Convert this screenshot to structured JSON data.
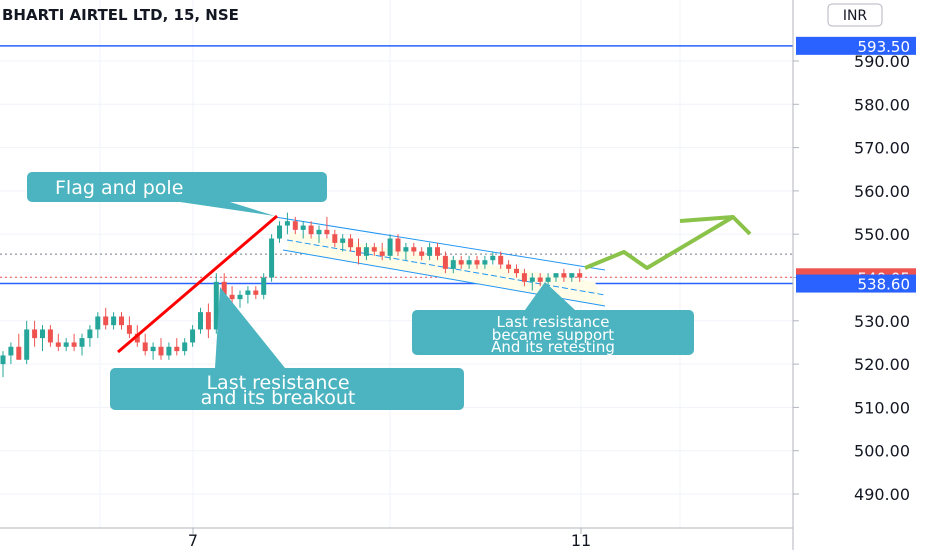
{
  "chart_data": {
    "type": "candlestick",
    "title": "BHARTI AIRTEL LTD, 15, NSE",
    "currency": "INR",
    "y_axis": {
      "ticks": [
        "590.00",
        "580.00",
        "570.00",
        "560.00",
        "550.00",
        "540.00",
        "530.00",
        "520.00",
        "510.00",
        "500.00",
        "490.00"
      ],
      "ylim": [
        482,
        597
      ]
    },
    "x_axis": {
      "ticks": [
        "7",
        "11"
      ]
    },
    "price_badges": [
      {
        "value": "593.50",
        "color": "#2962ff"
      },
      {
        "value": "540.05",
        "color": "#ef5350"
      },
      {
        "value": "538.60",
        "color": "#2962ff"
      }
    ],
    "horizontal_lines": [
      {
        "price": 593.5,
        "color": "#2962ff",
        "style": "solid"
      },
      {
        "price": 538.6,
        "color": "#2962ff",
        "style": "solid"
      },
      {
        "price": 545.4,
        "color": "#787b86",
        "style": "dotted"
      },
      {
        "price": 540.05,
        "color": "#ef5350",
        "style": "dotted"
      }
    ],
    "candles": [
      {
        "o": 520,
        "h": 523,
        "l": 517,
        "c": 522
      },
      {
        "o": 522,
        "h": 525,
        "l": 520,
        "c": 524
      },
      {
        "o": 524,
        "h": 527,
        "l": 521,
        "c": 521
      },
      {
        "o": 521,
        "h": 530,
        "l": 520,
        "c": 528
      },
      {
        "o": 528,
        "h": 530,
        "l": 524,
        "c": 526
      },
      {
        "o": 526,
        "h": 529,
        "l": 523,
        "c": 528
      },
      {
        "o": 528,
        "h": 529,
        "l": 524,
        "c": 525
      },
      {
        "o": 525,
        "h": 527,
        "l": 523,
        "c": 524
      },
      {
        "o": 524,
        "h": 526,
        "l": 523,
        "c": 525
      },
      {
        "o": 525,
        "h": 527,
        "l": 523,
        "c": 524
      },
      {
        "o": 524,
        "h": 527,
        "l": 522,
        "c": 526
      },
      {
        "o": 526,
        "h": 529,
        "l": 524,
        "c": 528
      },
      {
        "o": 528,
        "h": 532,
        "l": 526,
        "c": 531
      },
      {
        "o": 531,
        "h": 533,
        "l": 528,
        "c": 529
      },
      {
        "o": 529,
        "h": 532,
        "l": 528,
        "c": 531
      },
      {
        "o": 531,
        "h": 532,
        "l": 528,
        "c": 529
      },
      {
        "o": 529,
        "h": 531,
        "l": 526,
        "c": 527
      },
      {
        "o": 527,
        "h": 529,
        "l": 524,
        "c": 525
      },
      {
        "o": 525,
        "h": 527,
        "l": 522,
        "c": 523
      },
      {
        "o": 523,
        "h": 525,
        "l": 521,
        "c": 524
      },
      {
        "o": 524,
        "h": 526,
        "l": 521,
        "c": 522
      },
      {
        "o": 522,
        "h": 525,
        "l": 521,
        "c": 524
      },
      {
        "o": 524,
        "h": 526,
        "l": 522,
        "c": 523
      },
      {
        "o": 523,
        "h": 526,
        "l": 522,
        "c": 525
      },
      {
        "o": 525,
        "h": 529,
        "l": 524,
        "c": 528
      },
      {
        "o": 528,
        "h": 533,
        "l": 527,
        "c": 532
      },
      {
        "o": 532,
        "h": 534,
        "l": 526,
        "c": 528
      },
      {
        "o": 528,
        "h": 541,
        "l": 527,
        "c": 539
      },
      {
        "o": 539,
        "h": 541,
        "l": 534,
        "c": 536
      },
      {
        "o": 536,
        "h": 538,
        "l": 533,
        "c": 535
      },
      {
        "o": 535,
        "h": 537,
        "l": 533,
        "c": 536
      },
      {
        "o": 536,
        "h": 538,
        "l": 534,
        "c": 537
      },
      {
        "o": 537,
        "h": 538,
        "l": 535,
        "c": 536
      },
      {
        "o": 536,
        "h": 541,
        "l": 535,
        "c": 540
      },
      {
        "o": 540,
        "h": 550,
        "l": 539,
        "c": 549
      },
      {
        "o": 549,
        "h": 553,
        "l": 548,
        "c": 552
      },
      {
        "o": 552,
        "h": 555,
        "l": 550,
        "c": 553
      },
      {
        "o": 553,
        "h": 554,
        "l": 550,
        "c": 551
      },
      {
        "o": 551,
        "h": 553,
        "l": 549,
        "c": 552
      },
      {
        "o": 552,
        "h": 553,
        "l": 549,
        "c": 550
      },
      {
        "o": 550,
        "h": 552,
        "l": 548,
        "c": 551
      },
      {
        "o": 551,
        "h": 554,
        "l": 549,
        "c": 550
      },
      {
        "o": 550,
        "h": 551,
        "l": 547,
        "c": 548
      },
      {
        "o": 548,
        "h": 550,
        "l": 546,
        "c": 549
      },
      {
        "o": 549,
        "h": 550,
        "l": 546,
        "c": 547
      },
      {
        "o": 547,
        "h": 549,
        "l": 543,
        "c": 545
      },
      {
        "o": 545,
        "h": 548,
        "l": 544,
        "c": 547
      },
      {
        "o": 547,
        "h": 548,
        "l": 545,
        "c": 546
      },
      {
        "o": 546,
        "h": 548,
        "l": 544,
        "c": 545
      },
      {
        "o": 545,
        "h": 550,
        "l": 544,
        "c": 549
      },
      {
        "o": 549,
        "h": 550,
        "l": 545,
        "c": 546
      },
      {
        "o": 546,
        "h": 548,
        "l": 544,
        "c": 547
      },
      {
        "o": 547,
        "h": 548,
        "l": 545,
        "c": 546
      },
      {
        "o": 546,
        "h": 547,
        "l": 544,
        "c": 545
      },
      {
        "o": 545,
        "h": 548,
        "l": 544,
        "c": 547
      },
      {
        "o": 547,
        "h": 548,
        "l": 544,
        "c": 545
      },
      {
        "o": 545,
        "h": 546,
        "l": 541,
        "c": 542
      },
      {
        "o": 542,
        "h": 545,
        "l": 541,
        "c": 544
      },
      {
        "o": 544,
        "h": 545,
        "l": 542,
        "c": 543
      },
      {
        "o": 543,
        "h": 545,
        "l": 542,
        "c": 544
      },
      {
        "o": 544,
        "h": 545,
        "l": 542,
        "c": 543
      },
      {
        "o": 543,
        "h": 545,
        "l": 542,
        "c": 544
      },
      {
        "o": 544,
        "h": 546,
        "l": 543,
        "c": 545
      },
      {
        "o": 545,
        "h": 546,
        "l": 542,
        "c": 543
      },
      {
        "o": 543,
        "h": 544,
        "l": 541,
        "c": 542
      },
      {
        "o": 542,
        "h": 543,
        "l": 540,
        "c": 541
      },
      {
        "o": 541,
        "h": 542,
        "l": 538,
        "c": 539
      },
      {
        "o": 539,
        "h": 541,
        "l": 537,
        "c": 540
      },
      {
        "o": 540,
        "h": 541,
        "l": 538,
        "c": 539
      },
      {
        "o": 539,
        "h": 541,
        "l": 538,
        "c": 540
      },
      {
        "o": 540,
        "h": 541,
        "l": 539,
        "c": 541
      },
      {
        "o": 541,
        "h": 542,
        "l": 539,
        "c": 540
      },
      {
        "o": 540,
        "h": 541,
        "l": 539,
        "c": 541
      },
      {
        "o": 541,
        "h": 542,
        "l": 539,
        "c": 540
      }
    ],
    "annotations": [
      {
        "id": "flag-and-pole",
        "lines": [
          "Flag and pole"
        ]
      },
      {
        "id": "last-resistance-breakout",
        "lines": [
          "Last resistance",
          "and its breakout"
        ]
      },
      {
        "id": "resistance-support",
        "lines": [
          "Last resistance",
          "became support",
          "And its retesting"
        ]
      }
    ],
    "grid": true,
    "colors": {
      "up": "#26a69a",
      "down": "#ef5350",
      "callout": "#4bb4c0",
      "pole": "#ff0000",
      "channel": "#2196f3",
      "projection": "#8bc34a",
      "flag_fill": "#fffde7"
    }
  }
}
